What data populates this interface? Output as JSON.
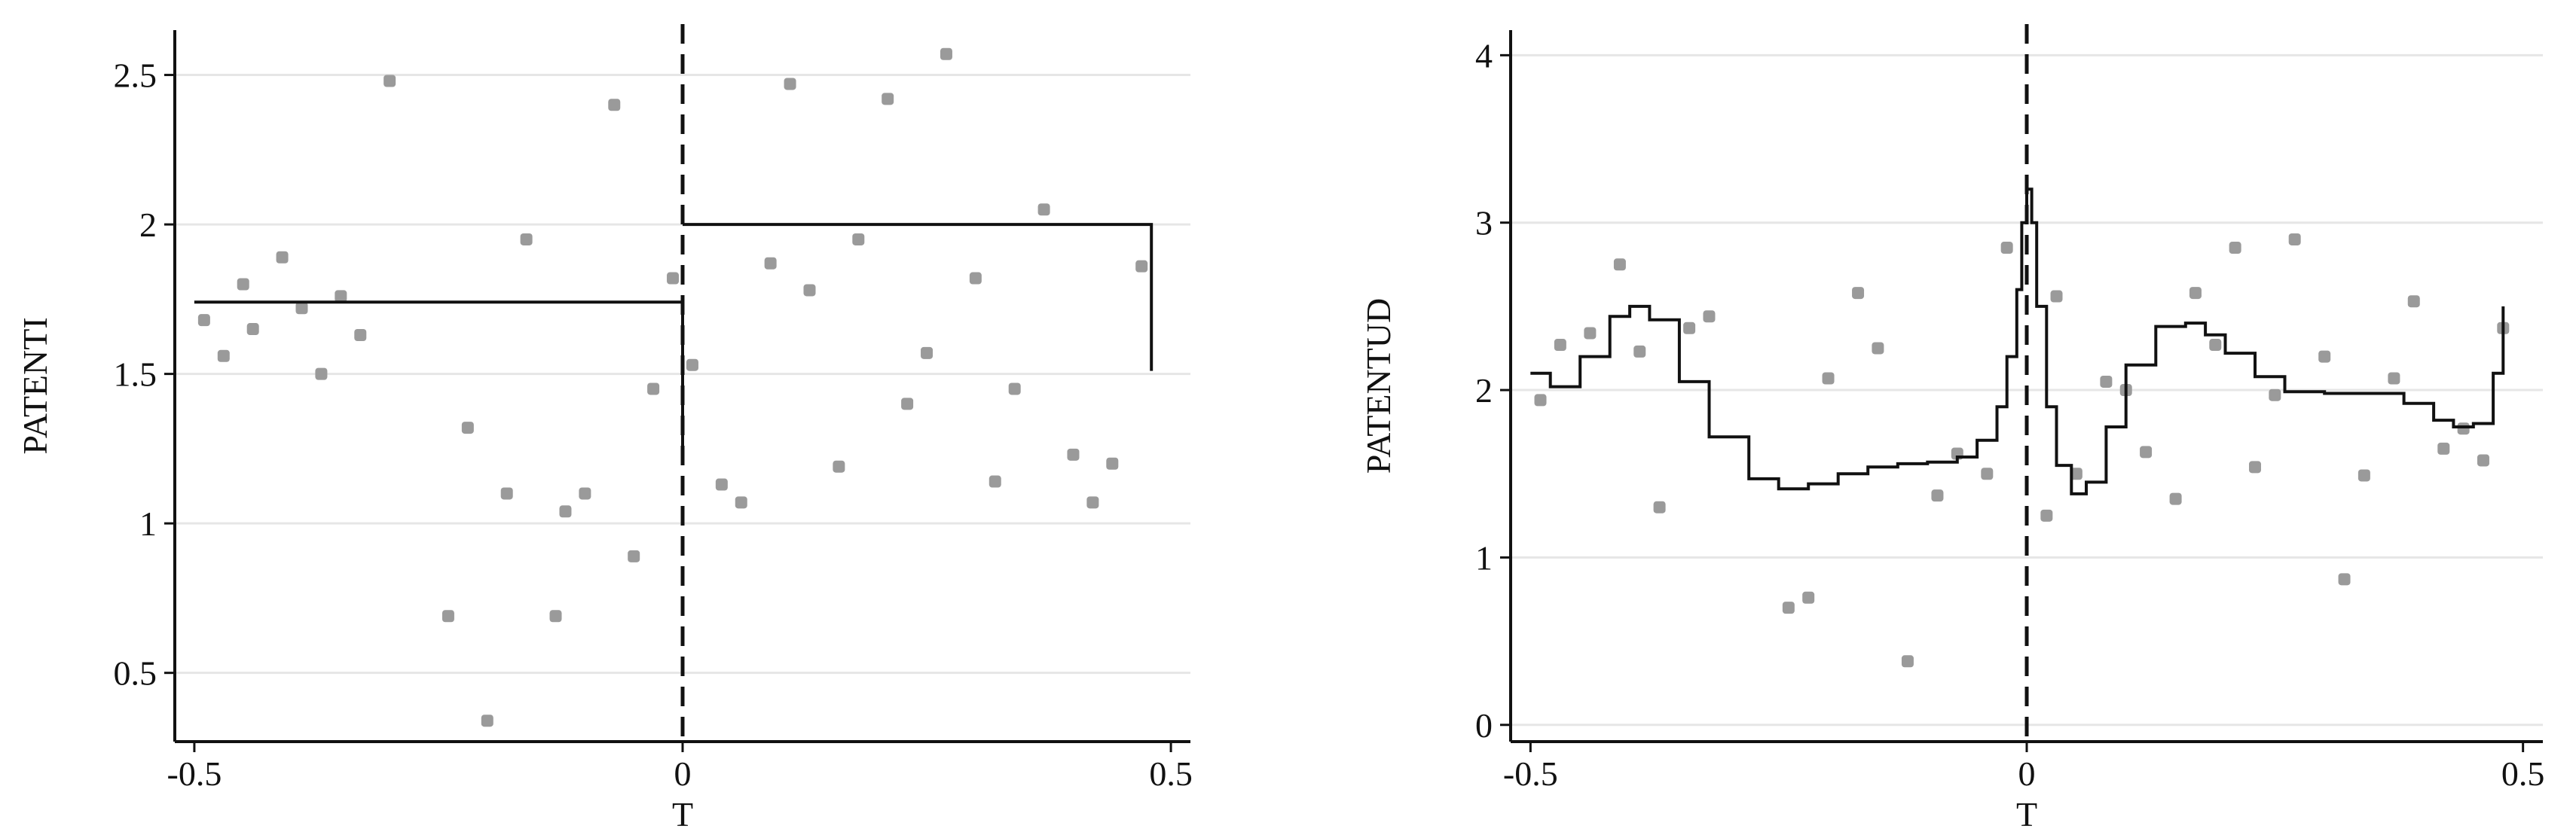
{
  "chart_data": [
    {
      "type": "scatter",
      "xlabel": "T",
      "ylabel": "PATENTI",
      "xlim": [
        -0.52,
        0.52
      ],
      "ylim": [
        0.27,
        2.65
      ],
      "xticks": [
        -0.5,
        0,
        0.5
      ],
      "xtick_labels": [
        "-0.5",
        "0",
        "0.5"
      ],
      "yticks": [
        0.5,
        1,
        1.5,
        2,
        2.5
      ],
      "ytick_labels": [
        "0.5",
        "1",
        "1.5",
        "2",
        "2.5"
      ],
      "grid": "horizontal",
      "cutoff_x": 0,
      "points": {
        "x": [
          -0.49,
          -0.47,
          -0.45,
          -0.44,
          -0.41,
          -0.39,
          -0.37,
          -0.35,
          -0.33,
          -0.3,
          -0.24,
          -0.22,
          -0.2,
          -0.18,
          -0.16,
          -0.13,
          -0.12,
          -0.1,
          -0.07,
          -0.05,
          -0.03,
          -0.01,
          0.01,
          0.04,
          0.06,
          0.09,
          0.11,
          0.13,
          0.16,
          0.18,
          0.21,
          0.23,
          0.25,
          0.27,
          0.3,
          0.32,
          0.34,
          0.37,
          0.4,
          0.42,
          0.44,
          0.47
        ],
        "y": [
          1.68,
          1.56,
          1.8,
          1.65,
          1.89,
          1.72,
          1.5,
          1.76,
          1.63,
          2.48,
          0.69,
          1.32,
          0.34,
          1.1,
          1.95,
          0.69,
          1.04,
          1.1,
          2.4,
          0.89,
          1.45,
          1.82,
          1.53,
          1.13,
          1.07,
          1.87,
          2.47,
          1.78,
          1.19,
          1.95,
          2.42,
          1.4,
          1.57,
          2.57,
          1.82,
          1.14,
          1.45,
          2.05,
          1.23,
          1.07,
          1.2,
          1.86
        ]
      },
      "series": [
        {
          "x": [
            -0.5,
            0
          ],
          "y": [
            1.74,
            1.25
          ]
        },
        {
          "x": [
            0,
            0.48
          ],
          "y": [
            2.0,
            1.51
          ]
        }
      ]
    },
    {
      "type": "scatter",
      "xlabel": "T",
      "ylabel": "PATENTUD",
      "xlim": [
        -0.52,
        0.52
      ],
      "ylim": [
        -0.1,
        4.15
      ],
      "xticks": [
        -0.5,
        0,
        0.5
      ],
      "xtick_labels": [
        "-0.5",
        "0",
        "0.5"
      ],
      "yticks": [
        0,
        1,
        2,
        3,
        4
      ],
      "ytick_labels": [
        "0",
        "1",
        "2",
        "3",
        "4"
      ],
      "grid": "horizontal",
      "cutoff_x": 0,
      "points": {
        "x": [
          -0.49,
          -0.47,
          -0.44,
          -0.41,
          -0.39,
          -0.37,
          -0.34,
          -0.32,
          -0.24,
          -0.22,
          -0.2,
          -0.17,
          -0.15,
          -0.12,
          -0.09,
          -0.07,
          -0.04,
          -0.02,
          0.02,
          0.03,
          0.05,
          0.08,
          0.1,
          0.12,
          0.15,
          0.17,
          0.19,
          0.21,
          0.23,
          0.25,
          0.27,
          0.3,
          0.32,
          0.34,
          0.37,
          0.39,
          0.42,
          0.44,
          0.46,
          0.48
        ],
        "y": [
          1.94,
          2.27,
          2.34,
          2.75,
          2.23,
          1.3,
          2.37,
          2.44,
          0.7,
          0.76,
          2.07,
          2.58,
          2.25,
          0.38,
          1.37,
          1.62,
          1.5,
          2.85,
          1.25,
          2.56,
          1.5,
          2.05,
          2.0,
          1.63,
          1.35,
          2.58,
          2.27,
          2.85,
          1.54,
          1.97,
          2.9,
          2.2,
          0.87,
          1.49,
          2.07,
          2.53,
          1.65,
          1.77,
          1.58,
          2.37
        ]
      },
      "series": [
        {
          "x": [
            -0.5,
            -0.48,
            -0.45,
            -0.42,
            -0.4,
            -0.38,
            -0.35,
            -0.32,
            -0.28,
            -0.25,
            -0.22,
            -0.19,
            -0.16,
            -0.13,
            -0.1,
            -0.07,
            -0.05,
            -0.03,
            -0.02,
            -0.01,
            -0.005,
            0,
            0.005,
            0.01,
            0.02,
            0.03,
            0.045,
            0.06,
            0.08,
            0.1,
            0.13,
            0.16,
            0.18,
            0.2,
            0.23,
            0.26,
            0.3,
            0.35,
            0.38,
            0.41,
            0.43,
            0.45,
            0.47,
            0.48
          ],
          "y": [
            2.1,
            2.02,
            2.2,
            2.44,
            2.5,
            2.42,
            2.05,
            1.72,
            1.47,
            1.41,
            1.44,
            1.5,
            1.54,
            1.56,
            1.57,
            1.6,
            1.7,
            1.9,
            2.2,
            2.6,
            3.0,
            3.2,
            3.0,
            2.5,
            1.9,
            1.55,
            1.38,
            1.45,
            1.78,
            2.15,
            2.38,
            2.4,
            2.33,
            2.22,
            2.08,
            1.99,
            1.98,
            1.98,
            1.92,
            1.82,
            1.78,
            1.8,
            2.1,
            2.5
          ]
        }
      ]
    }
  ]
}
